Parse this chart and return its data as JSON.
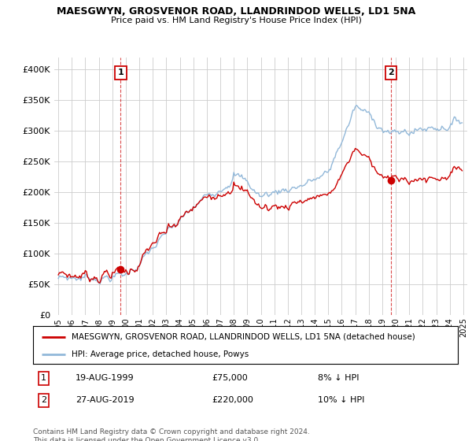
{
  "title": "MAESGWYN, GROSVENOR ROAD, LLANDRINDOD WELLS, LD1 5NA",
  "subtitle": "Price paid vs. HM Land Registry's House Price Index (HPI)",
  "hpi_label": "HPI: Average price, detached house, Powys",
  "property_label": "MAESGWYN, GROSVENOR ROAD, LLANDRINDOD WELLS, LD1 5NA (detached house)",
  "footnote": "Contains HM Land Registry data © Crown copyright and database right 2024.\nThis data is licensed under the Open Government Licence v3.0.",
  "sale1_date": "19-AUG-1999",
  "sale1_price": 75000,
  "sale1_year": 1999.62,
  "sale1_pct": "8% ↓ HPI",
  "sale2_date": "27-AUG-2019",
  "sale2_price": 220000,
  "sale2_year": 2019.65,
  "sale2_pct": "10% ↓ HPI",
  "hpi_color": "#92b8d9",
  "property_color": "#cc0000",
  "ylim": [
    0,
    420000
  ],
  "yticks": [
    0,
    50000,
    100000,
    150000,
    200000,
    250000,
    300000,
    350000,
    400000
  ],
  "background_color": "#ffffff",
  "grid_color": "#cccccc",
  "xmin": 1994.7,
  "xmax": 2025.3
}
